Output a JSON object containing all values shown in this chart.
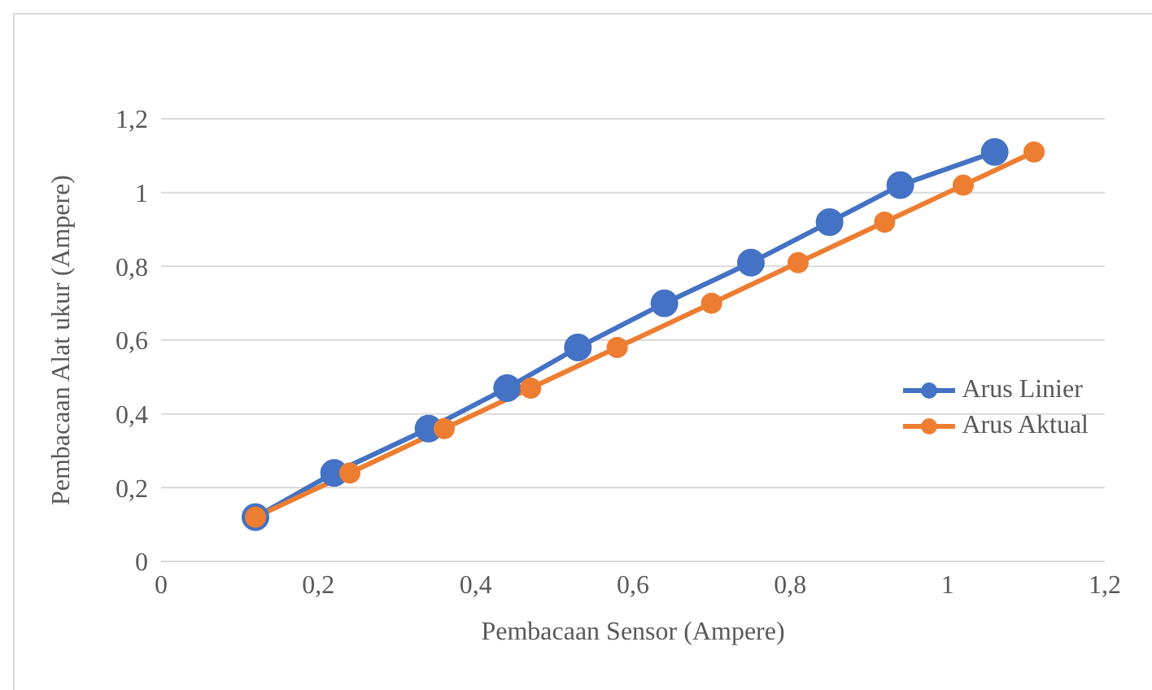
{
  "chart_data": {
    "type": "line",
    "xlabel": "Pembacaan Sensor (Ampere)",
    "ylabel": "Pembacaan Alat ukur (Ampere)",
    "xlim": [
      0,
      1.2
    ],
    "ylim": [
      0,
      1.2
    ],
    "xticks": [
      0,
      {
        "value": 0.2,
        "label": "0,2"
      },
      {
        "value": 0.4,
        "label": "0,4"
      },
      {
        "value": 0.6,
        "label": "0,6"
      },
      {
        "value": 0.8,
        "label": "0,8"
      },
      1,
      {
        "value": 1.2,
        "label": "1,2"
      }
    ],
    "yticks": [
      0,
      {
        "value": 0.2,
        "label": "0,2"
      },
      {
        "value": 0.4,
        "label": "0,4"
      },
      {
        "value": 0.6,
        "label": "0,6"
      },
      {
        "value": 0.8,
        "label": "0,8"
      },
      1,
      {
        "value": 1.2,
        "label": "1,2"
      }
    ],
    "grid": "y",
    "legend": "bottom right",
    "marker": "circle",
    "line_style": "solid",
    "series": [
      {
        "name": "Arus Linier",
        "color": "#4472c4",
        "x": [
          0.12,
          0.22,
          0.34,
          0.44,
          0.53,
          0.64,
          0.75,
          0.85,
          0.94,
          1.06
        ],
        "values": [
          0.12,
          0.24,
          0.36,
          0.47,
          0.58,
          0.7,
          0.81,
          0.92,
          1.02,
          1.11
        ]
      },
      {
        "name": "Arus Aktual",
        "color": "#ed7d31",
        "x": [
          0.12,
          0.24,
          0.36,
          0.47,
          0.58,
          0.7,
          0.81,
          0.92,
          1.02,
          1.11
        ],
        "values": [
          0.12,
          0.24,
          0.36,
          0.47,
          0.58,
          0.7,
          0.81,
          0.92,
          1.02,
          1.11
        ]
      }
    ]
  }
}
